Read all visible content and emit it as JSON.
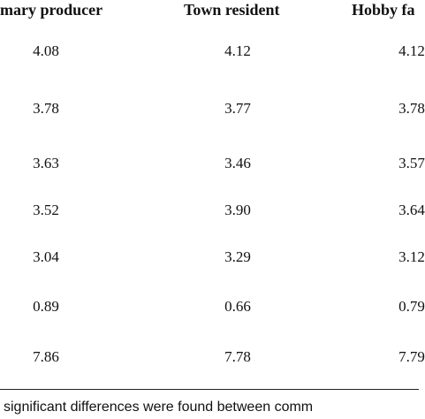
{
  "table": {
    "header": [
      "mary producer",
      "Town resident",
      "Hobby fa"
    ],
    "rows": [
      [
        "4.08",
        "4.12",
        "4.12"
      ],
      [
        "3.78",
        "3.77",
        "3.78"
      ],
      [
        "3.63",
        "3.46",
        "3.57"
      ],
      [
        "3.52",
        "3.90",
        "3.64"
      ],
      [
        "3.04",
        "3.29",
        "3.12"
      ],
      [
        "0.89",
        "0.66",
        "0.79"
      ],
      [
        "7.86",
        "7.78",
        "7.79"
      ]
    ]
  },
  "footnote": "significant differences were found between comm"
}
